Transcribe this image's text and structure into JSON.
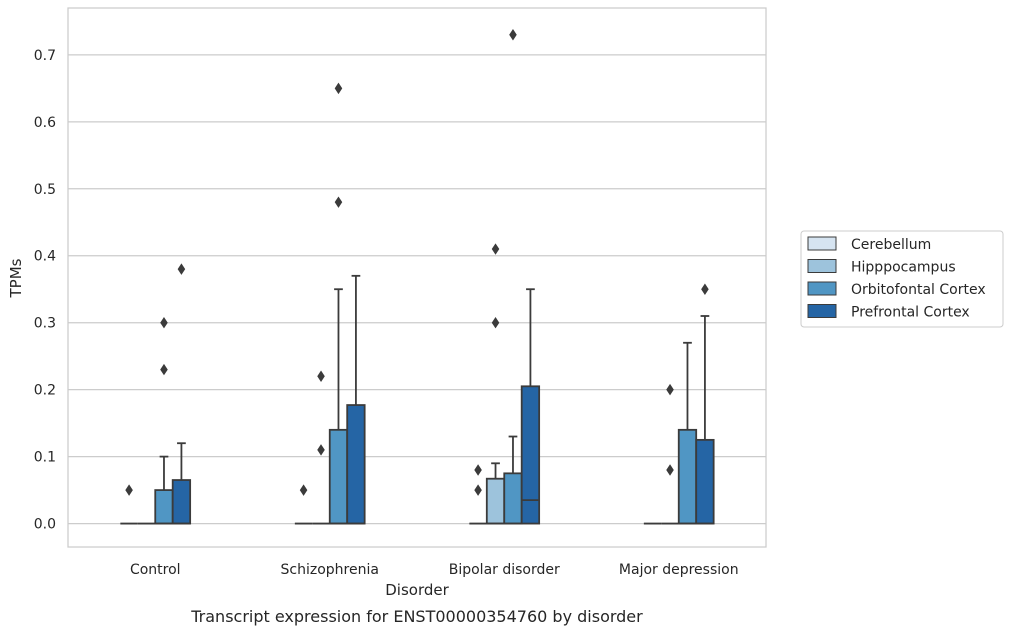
{
  "caption": "Transcript expression for ENST00000354760 by disorder",
  "chart_data": {
    "type": "boxplot",
    "xlabel": "Disorder",
    "ylabel": "TPMs",
    "ylim": [
      -0.035,
      0.77
    ],
    "yticks": [
      0.0,
      0.1,
      0.2,
      0.3,
      0.4,
      0.5,
      0.6,
      0.7
    ],
    "ytick_labels": [
      "0.0",
      "0.1",
      "0.2",
      "0.3",
      "0.4",
      "0.5",
      "0.6",
      "0.7"
    ],
    "grid": "horizontal",
    "legend_position": "right",
    "categories": [
      "Control",
      "Schizophrenia",
      "Bipolar disorder",
      "Major depression"
    ],
    "series": [
      {
        "name": "Cerebellum",
        "color": "#d6e4f1",
        "boxes": [
          {
            "q1": 0,
            "median": 0,
            "q3": 0,
            "whisker_low": 0,
            "whisker_high": 0,
            "outliers": [
              0.05
            ]
          },
          {
            "q1": 0,
            "median": 0,
            "q3": 0,
            "whisker_low": 0,
            "whisker_high": 0,
            "outliers": [
              0.05
            ]
          },
          {
            "q1": 0,
            "median": 0,
            "q3": 0,
            "whisker_low": 0,
            "whisker_high": 0,
            "outliers": [
              0.05,
              0.08
            ]
          },
          {
            "q1": 0,
            "median": 0,
            "q3": 0,
            "whisker_low": 0,
            "whisker_high": 0,
            "outliers": []
          }
        ]
      },
      {
        "name": "Hipppocampus",
        "color": "#9dc3dc",
        "boxes": [
          {
            "q1": 0,
            "median": 0,
            "q3": 0,
            "whisker_low": 0,
            "whisker_high": 0,
            "outliers": []
          },
          {
            "q1": 0,
            "median": 0,
            "q3": 0,
            "whisker_low": 0,
            "whisker_high": 0,
            "outliers": [
              0.11,
              0.22
            ]
          },
          {
            "q1": 0,
            "median": 0,
            "q3": 0.067,
            "whisker_low": 0,
            "whisker_high": 0.09,
            "outliers": [
              0.3,
              0.41
            ]
          },
          {
            "q1": 0,
            "median": 0,
            "q3": 0,
            "whisker_low": 0,
            "whisker_high": 0,
            "outliers": [
              0.08,
              0.2
            ]
          }
        ]
      },
      {
        "name": "Orbitofontal Cortex",
        "color": "#5096c4",
        "boxes": [
          {
            "q1": 0,
            "median": 0,
            "q3": 0.05,
            "whisker_low": 0,
            "whisker_high": 0.1,
            "outliers": [
              0.23,
              0.3
            ]
          },
          {
            "q1": 0,
            "median": 0,
            "q3": 0.14,
            "whisker_low": 0,
            "whisker_high": 0.35,
            "outliers": [
              0.48,
              0.65
            ]
          },
          {
            "q1": 0,
            "median": 0,
            "q3": 0.075,
            "whisker_low": 0,
            "whisker_high": 0.13,
            "outliers": [
              0.73
            ]
          },
          {
            "q1": 0,
            "median": 0,
            "q3": 0.14,
            "whisker_low": 0,
            "whisker_high": 0.27,
            "outliers": []
          }
        ]
      },
      {
        "name": "Prefrontal Cortex",
        "color": "#2565a5",
        "boxes": [
          {
            "q1": 0,
            "median": 0,
            "q3": 0.065,
            "whisker_low": 0,
            "whisker_high": 0.12,
            "outliers": [
              0.38
            ]
          },
          {
            "q1": 0,
            "median": 0,
            "q3": 0.177,
            "whisker_low": 0,
            "whisker_high": 0.37,
            "outliers": []
          },
          {
            "q1": 0,
            "median": 0.035,
            "q3": 0.205,
            "whisker_low": 0,
            "whisker_high": 0.35,
            "outliers": []
          },
          {
            "q1": 0,
            "median": 0,
            "q3": 0.125,
            "whisker_low": 0,
            "whisker_high": 0.31,
            "outliers": [
              0.35
            ]
          }
        ]
      }
    ]
  }
}
